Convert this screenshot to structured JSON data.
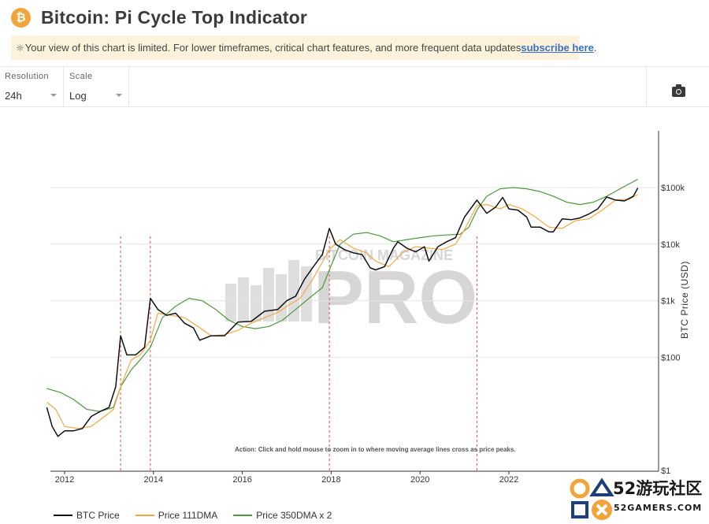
{
  "header": {
    "title": "Bitcoin: Pi Cycle Top Indicator",
    "logo_glyph": "₿"
  },
  "notice": {
    "text": "Your view of this chart is limited. For lower timeframes, critical chart features, and more frequent data updates ",
    "link_text": "subscribe here",
    "suffix": "."
  },
  "controls": {
    "resolution": {
      "label": "Resolution",
      "value": "24h"
    },
    "scale": {
      "label": "Scale",
      "value": "Log"
    },
    "screenshot_icon": "camera-icon"
  },
  "colors": {
    "price": "#111111",
    "dma111": "#f5a742",
    "dma350x2": "#4a9a3a",
    "signal": "#e0533c"
  },
  "chart_data": {
    "type": "line",
    "ylabel": "BTC Price (USD)",
    "yscale": "log",
    "ylim": [
      1,
      400000
    ],
    "xlim": [
      2011.6,
      2024.9
    ],
    "x_ticks": [
      "2012",
      "2014",
      "2016",
      "2018",
      "2020",
      "2022"
    ],
    "y_ticks": [
      "$1",
      "$100",
      "$1k",
      "$10k",
      "$100k"
    ],
    "y_tick_values": [
      1,
      100,
      1000,
      10000,
      100000
    ],
    "annotation": "Action: Click and hold mouse to zoom in to where moving average lines cross as price peaks.",
    "watermark": {
      "top": "BITCOIN MAGAZINE",
      "main": "PRO"
    },
    "crossovers": [
      2013.26,
      2013.93,
      2017.96,
      2021.28
    ],
    "series": [
      {
        "name": "BTC Price",
        "x": [
          2011.6,
          2011.72,
          2011.85,
          2012.0,
          2012.2,
          2012.4,
          2012.6,
          2012.8,
          2013.0,
          2013.15,
          2013.26,
          2013.4,
          2013.6,
          2013.8,
          2013.93,
          2014.1,
          2014.3,
          2014.5,
          2014.7,
          2014.9,
          2015.04,
          2015.3,
          2015.6,
          2015.9,
          2016.2,
          2016.5,
          2016.8,
          2017.0,
          2017.2,
          2017.4,
          2017.6,
          2017.8,
          2017.96,
          2018.1,
          2018.3,
          2018.5,
          2018.7,
          2018.88,
          2019.0,
          2019.2,
          2019.4,
          2019.5,
          2019.7,
          2019.9,
          2020.1,
          2020.2,
          2020.4,
          2020.6,
          2020.8,
          2021.0,
          2021.28,
          2021.5,
          2021.7,
          2021.86,
          2022.0,
          2022.2,
          2022.4,
          2022.5,
          2022.7,
          2022.9,
          2023.0,
          2023.2,
          2023.4,
          2023.6,
          2023.8,
          2024.0,
          2024.2,
          2024.4,
          2024.6,
          2024.8,
          2024.9
        ],
        "values": [
          13,
          6,
          4,
          5,
          5,
          5.5,
          9,
          11,
          13,
          30,
          240,
          110,
          110,
          150,
          1100,
          700,
          550,
          600,
          400,
          330,
          200,
          240,
          240,
          420,
          430,
          650,
          700,
          1000,
          1200,
          2400,
          4000,
          6500,
          19000,
          10000,
          8000,
          7000,
          6500,
          3800,
          3500,
          4000,
          8500,
          11000,
          8500,
          7300,
          9000,
          5000,
          9000,
          11000,
          13000,
          30000,
          60000,
          35000,
          45000,
          67000,
          42000,
          40000,
          30000,
          20000,
          20000,
          16500,
          16500,
          28000,
          27000,
          29000,
          34000,
          42000,
          68000,
          60000,
          58000,
          70000,
          98000
        ]
      },
      {
        "name": "Price 111DMA",
        "x": [
          2011.6,
          2011.8,
          2012.0,
          2012.3,
          2012.6,
          2012.9,
          2013.1,
          2013.26,
          2013.5,
          2013.7,
          2013.93,
          2014.1,
          2014.4,
          2014.7,
          2015.0,
          2015.3,
          2015.6,
          2015.9,
          2016.2,
          2016.5,
          2016.8,
          2017.0,
          2017.3,
          2017.6,
          2017.96,
          2018.2,
          2018.5,
          2018.8,
          2019.0,
          2019.3,
          2019.6,
          2019.9,
          2020.2,
          2020.5,
          2020.8,
          2021.0,
          2021.28,
          2021.5,
          2021.8,
          2022.0,
          2022.3,
          2022.6,
          2022.9,
          2023.2,
          2023.5,
          2023.8,
          2024.1,
          2024.4,
          2024.7,
          2024.9
        ],
        "values": [
          16,
          12,
          6,
          5.5,
          6,
          9,
          12,
          30,
          90,
          110,
          200,
          600,
          550,
          500,
          350,
          240,
          250,
          300,
          400,
          500,
          620,
          800,
          1100,
          2500,
          8000,
          12000,
          8500,
          7000,
          5000,
          4000,
          7000,
          9000,
          8500,
          8000,
          10000,
          18000,
          48000,
          50000,
          42000,
          50000,
          42000,
          30000,
          20000,
          19000,
          26000,
          28000,
          40000,
          60000,
          62000,
          75000
        ]
      },
      {
        "name": "Price 350DMA x 2",
        "x": [
          2011.6,
          2011.9,
          2012.2,
          2012.5,
          2012.8,
          2013.1,
          2013.26,
          2013.5,
          2013.7,
          2013.93,
          2014.2,
          2014.5,
          2014.8,
          2015.1,
          2015.4,
          2015.7,
          2016.0,
          2016.3,
          2016.6,
          2016.9,
          2017.2,
          2017.5,
          2017.8,
          2017.96,
          2018.2,
          2018.5,
          2018.8,
          2019.1,
          2019.4,
          2019.7,
          2020.0,
          2020.3,
          2020.6,
          2020.9,
          2021.1,
          2021.28,
          2021.5,
          2021.8,
          2022.1,
          2022.4,
          2022.7,
          2023.0,
          2023.3,
          2023.6,
          2023.9,
          2024.2,
          2024.5,
          2024.9
        ],
        "values": [
          28,
          24,
          18,
          12,
          11,
          13,
          30,
          60,
          90,
          150,
          500,
          800,
          1100,
          1000,
          700,
          450,
          350,
          320,
          350,
          450,
          700,
          1100,
          1700,
          3500,
          10000,
          15000,
          16000,
          14000,
          11000,
          12000,
          13000,
          14000,
          14500,
          15000,
          20000,
          40000,
          70000,
          95000,
          100000,
          95000,
          85000,
          70000,
          55000,
          50000,
          55000,
          70000,
          95000,
          140000
        ]
      }
    ]
  },
  "overlay": {
    "text": "52游玩社区",
    "sub": "52GAMERS.COM"
  }
}
